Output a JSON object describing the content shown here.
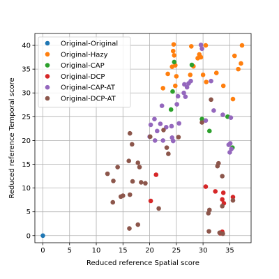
{
  "chart_data": {
    "type": "scatter",
    "xlabel": "Reduced reference Spatial score",
    "ylabel": "Reduced reference Temporal score",
    "xlim": [
      -1.5,
      39
    ],
    "ylim": [
      -1.5,
      42.5
    ],
    "xticks": [
      0,
      5,
      10,
      15,
      20,
      25,
      30,
      35
    ],
    "yticks": [
      0,
      5,
      10,
      15,
      20,
      25,
      30,
      35,
      40
    ],
    "grid": true,
    "legend_position": "top-left",
    "series": [
      {
        "name": "Original-Original",
        "color": "#1f77b4",
        "points": [
          [
            0,
            0
          ]
        ]
      },
      {
        "name": "Original-Hazy",
        "color": "#ff7f0e",
        "points": [
          [
            24.5,
            40.2
          ],
          [
            24.4,
            38.8
          ],
          [
            24.6,
            37.9
          ],
          [
            24.2,
            35.5
          ],
          [
            24.8,
            35.8
          ],
          [
            23.4,
            34.0
          ],
          [
            22.5,
            31.0
          ],
          [
            25.0,
            33.5
          ],
          [
            24.8,
            31.5
          ],
          [
            27.8,
            39.8
          ],
          [
            29.0,
            37.3
          ],
          [
            29.6,
            37.5
          ],
          [
            29.3,
            38.1
          ],
          [
            30.5,
            40.0
          ],
          [
            28.2,
            35.6
          ],
          [
            27.6,
            33.8
          ],
          [
            30.0,
            33.8
          ],
          [
            32.5,
            34.2
          ],
          [
            30.6,
            32.3
          ],
          [
            33.8,
            31.5
          ],
          [
            35.6,
            28.7
          ],
          [
            35.9,
            37.8
          ],
          [
            36.6,
            35.0
          ],
          [
            37.1,
            36.2
          ],
          [
            37.3,
            40.0
          ]
        ]
      },
      {
        "name": "Original-CAP",
        "color": "#2ca02c",
        "points": [
          [
            24.3,
            30.3
          ],
          [
            24.0,
            26.5
          ],
          [
            24.6,
            36.5
          ],
          [
            27.9,
            35.9
          ],
          [
            29.8,
            24.5
          ],
          [
            31.2,
            22.0
          ],
          [
            34.6,
            25.0
          ],
          [
            35.5,
            18.5
          ]
        ]
      },
      {
        "name": "Original-DCP",
        "color": "#d62728",
        "points": [
          [
            20.2,
            7.3
          ],
          [
            21.2,
            12.8
          ],
          [
            30.5,
            10.3
          ],
          [
            32.3,
            9.3
          ],
          [
            33.8,
            9.0
          ],
          [
            35.6,
            8.1
          ],
          [
            33.6,
            7.6
          ],
          [
            33.9,
            6.8
          ],
          [
            33.2,
            0.5
          ],
          [
            33.6,
            0.8
          ]
        ]
      },
      {
        "name": "Original-CAP-AT",
        "color": "#9467bd",
        "points": [
          [
            20.0,
            20.8
          ],
          [
            20.2,
            23.3
          ],
          [
            20.9,
            24.5
          ],
          [
            21.4,
            22.0
          ],
          [
            22.0,
            23.5
          ],
          [
            22.5,
            20.0
          ],
          [
            23.1,
            22.8
          ],
          [
            24.1,
            23.0
          ],
          [
            24.2,
            20.6
          ],
          [
            24.4,
            19.9
          ],
          [
            22.3,
            27.3
          ],
          [
            25.1,
            27.6
          ],
          [
            25.5,
            23.6
          ],
          [
            25.3,
            29.3
          ],
          [
            26.4,
            30.0
          ],
          [
            26.5,
            31.8
          ],
          [
            27.0,
            31.2
          ],
          [
            27.3,
            32.0
          ],
          [
            26.7,
            29.2
          ],
          [
            27.7,
            32.5
          ],
          [
            29.6,
            40.1
          ],
          [
            29.8,
            39.3
          ],
          [
            30.5,
            24.2
          ],
          [
            31.5,
            32.5
          ],
          [
            32.0,
            26.3
          ],
          [
            33.7,
            25.4
          ],
          [
            35.2,
            24.8
          ],
          [
            35.1,
            19.4
          ],
          [
            35.3,
            18.2
          ],
          [
            35.0,
            17.5
          ],
          [
            34.8,
            19.1
          ],
          [
            21.0,
            20.0
          ]
        ]
      },
      {
        "name": "Original-DCP-AT",
        "color": "#8c564b",
        "points": [
          [
            12.1,
            13.0
          ],
          [
            13.2,
            11.5
          ],
          [
            13.1,
            7.0
          ],
          [
            14.0,
            14.4
          ],
          [
            14.6,
            8.2
          ],
          [
            15.0,
            8.4
          ],
          [
            16.3,
            21.5
          ],
          [
            16.1,
            15.7
          ],
          [
            16.7,
            19.2
          ],
          [
            16.8,
            11.4
          ],
          [
            16.3,
            8.6
          ],
          [
            16.2,
            1.5
          ],
          [
            17.8,
            2.3
          ],
          [
            17.8,
            15.3
          ],
          [
            18.1,
            14.4
          ],
          [
            18.4,
            11.2
          ],
          [
            19.2,
            11.0
          ],
          [
            20.1,
            20.8
          ],
          [
            21.7,
            5.7
          ],
          [
            22.6,
            22.2
          ],
          [
            23.2,
            18.5
          ],
          [
            23.5,
            17.2
          ],
          [
            25.4,
            20.7
          ],
          [
            29.8,
            23.8
          ],
          [
            31.2,
            5.4
          ],
          [
            31.0,
            4.7
          ],
          [
            31.1,
            0.9
          ],
          [
            31.5,
            28.6
          ],
          [
            32.7,
            14.6
          ],
          [
            32.9,
            15.2
          ],
          [
            33.6,
            12.5
          ],
          [
            33.6,
            6.2
          ],
          [
            33.1,
            0.6
          ],
          [
            33.7,
            0.4
          ],
          [
            35.6,
            7.4
          ]
        ]
      }
    ]
  }
}
